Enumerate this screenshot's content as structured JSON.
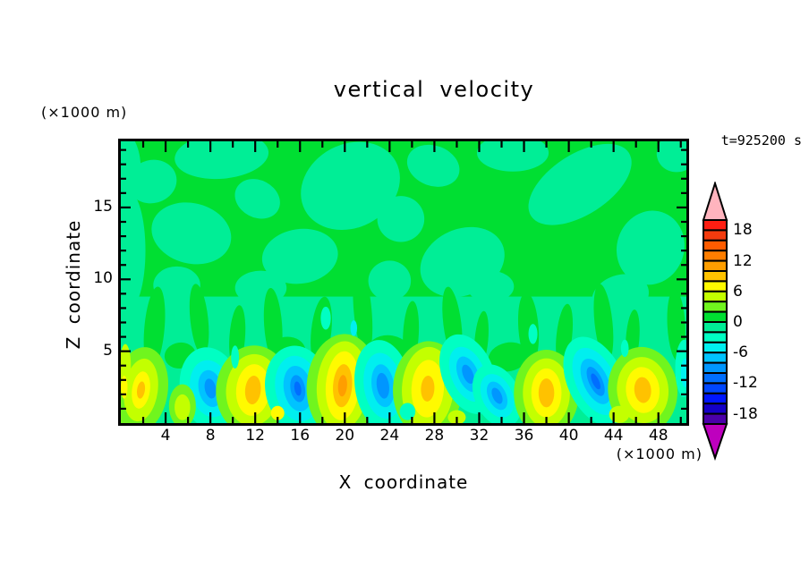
{
  "title": "vertical velocity",
  "time_label": "t=925200 s",
  "x_axis": {
    "title": "X coordinate",
    "unit": "(×1000 m)",
    "labeled_ticks": [
      4,
      8,
      12,
      16,
      20,
      24,
      28,
      32,
      36,
      40,
      44,
      48
    ],
    "minor_step": 2,
    "range": [
      0,
      50.5
    ]
  },
  "y_axis": {
    "title": "Z coordinate",
    "unit": "(×1000 m)",
    "labeled_ticks": [
      5,
      10,
      15
    ],
    "minor_step": 1,
    "range": [
      0,
      19.6
    ]
  },
  "colorbar": {
    "labels": [
      18,
      12,
      6,
      0,
      -6,
      -12,
      -18
    ],
    "segment_values_top_to_bottom": [
      [
        18,
        20
      ],
      [
        16,
        18
      ],
      [
        14,
        16
      ],
      [
        12,
        14
      ],
      [
        10,
        12
      ],
      [
        8,
        10
      ],
      [
        6,
        8
      ],
      [
        4,
        6
      ],
      [
        2,
        4
      ],
      [
        0,
        2
      ],
      [
        -2,
        0
      ],
      [
        -4,
        -2
      ],
      [
        -6,
        -4
      ],
      [
        -8,
        -6
      ],
      [
        -10,
        -8
      ],
      [
        -12,
        -10
      ],
      [
        -14,
        -12
      ],
      [
        -16,
        -14
      ],
      [
        -18,
        -16
      ],
      [
        -20,
        -18
      ]
    ],
    "segment_colors_top_to_bottom": [
      "#FF1E12",
      "#F43B0E",
      "#FF5C00",
      "#FF7E00",
      "#FF9E00",
      "#FFC200",
      "#FFFA00",
      "#C3FF00",
      "#70F51E",
      "#00DF32",
      "#00EE96",
      "#00FFC3",
      "#00EFEF",
      "#00C3FF",
      "#0096FF",
      "#006EFF",
      "#0046FF",
      "#0016FF",
      "#1400C8",
      "#4B00AA"
    ],
    "over_arrow_color": "#FFB4BE",
    "under_arrow_color": "#BE00BE"
  },
  "chart_data": {
    "type": "filled_contour",
    "title": "vertical velocity",
    "xlabel": "X coordinate",
    "ylabel": "Z coordinate",
    "x_unit": "(×1000 m)",
    "y_unit": "(×1000 m)",
    "time_stamp": "t=925200 s",
    "x_range": [
      0,
      50.5
    ],
    "z_range": [
      0,
      19.6
    ],
    "contour_interval": 2,
    "level_min": -20,
    "level_max": 20,
    "field_description": "Vertical velocity cross-section: weak values (-2..2, two greens) aloft; alternating updraft cores (+6..+12, yellow/gold/orange) and downdraft cores (-6..-14, cyan/blue) in the lowest 5 km",
    "palette": {
      "green": "#00DF32",
      "mint": "#00EE96",
      "lightgreen": "#70F51E",
      "chartreuse": "#C3FF00",
      "yellow": "#FFFA00",
      "gold": "#FFC200",
      "orange": "#FF9E00",
      "aqua": "#00FFC3",
      "turquoise": "#00EFEF",
      "lightblue": "#00C3FF",
      "skyblue": "#0096FF",
      "blue": "#006EFF",
      "deepblue": "#0046FF"
    },
    "background": {
      "base_color_key": "green",
      "band_color_key": "mint",
      "band_top_z": 8.8
    },
    "bg_patches": [
      [
        20.5,
        16.5,
        4.6,
        2.9,
        -28
      ],
      [
        9.0,
        18.6,
        4.2,
        1.6,
        -5
      ],
      [
        6.3,
        13.2,
        3.6,
        2.1,
        14
      ],
      [
        16.0,
        11.6,
        3.4,
        1.9,
        -8
      ],
      [
        30.5,
        11.2,
        3.9,
        2.3,
        -24
      ],
      [
        41.0,
        16.6,
        5.2,
        2.1,
        -33
      ],
      [
        47.3,
        12.2,
        3.0,
        2.6,
        18
      ],
      [
        25.0,
        14.2,
        2.1,
        1.6,
        0
      ],
      [
        0.6,
        12.0,
        1.6,
        4.2,
        0
      ],
      [
        35.0,
        18.8,
        3.2,
        1.3,
        0
      ],
      [
        44.6,
        8.8,
        2.6,
        1.5,
        -18
      ],
      [
        12.2,
        15.6,
        2.1,
        1.3,
        28
      ],
      [
        27.9,
        17.9,
        2.4,
        1.4,
        20
      ],
      [
        2.8,
        16.8,
        2.2,
        1.5,
        -15
      ],
      [
        49.8,
        18.9,
        2.0,
        1.4,
        -30
      ],
      [
        0.6,
        17.5,
        1.2,
        2.5,
        0
      ],
      [
        5.0,
        9.6,
        2.1,
        1.3,
        0
      ],
      [
        12.5,
        9.4,
        2.3,
        1.2,
        0
      ],
      [
        24.0,
        9.9,
        1.9,
        1.4,
        0
      ],
      [
        33.0,
        9.5,
        2.1,
        1.1,
        0
      ]
    ],
    "green_streaks": [
      [
        3.0,
        6.6,
        0.9,
        2.9,
        5
      ],
      [
        7.0,
        7.2,
        0.8,
        2.5,
        -6
      ],
      [
        10.4,
        6.0,
        0.7,
        2.2,
        4
      ],
      [
        13.6,
        6.8,
        0.8,
        2.6,
        -4
      ],
      [
        17.9,
        6.4,
        0.9,
        2.4,
        6
      ],
      [
        21.6,
        7.8,
        0.8,
        3.1,
        -5
      ],
      [
        25.9,
        6.2,
        0.7,
        2.3,
        3
      ],
      [
        29.6,
        6.9,
        0.8,
        2.6,
        -7
      ],
      [
        32.2,
        5.8,
        0.6,
        2.0,
        5
      ],
      [
        36.4,
        6.6,
        0.9,
        2.5,
        -4
      ],
      [
        39.6,
        6.1,
        0.7,
        2.2,
        6
      ],
      [
        43.1,
        7.0,
        0.8,
        2.7,
        -6
      ],
      [
        45.7,
        5.9,
        0.6,
        2.0,
        4
      ],
      [
        49.6,
        6.8,
        0.8,
        2.5,
        -3
      ],
      [
        24.0,
        4.9,
        2.0,
        1.2,
        10
      ],
      [
        34.6,
        4.6,
        1.8,
        1.0,
        -12
      ],
      [
        15.0,
        5.1,
        1.5,
        0.9,
        8
      ],
      [
        5.3,
        4.7,
        1.4,
        0.9,
        -8
      ],
      [
        41.5,
        4.9,
        1.6,
        1.0,
        12
      ]
    ],
    "plumes": [
      {
        "kind": "updraft",
        "x": 1.8,
        "z": 2.3,
        "rot": 8,
        "layers": [
          [
            "lightgreen",
            2.4,
            3.0
          ],
          [
            "chartreuse",
            1.5,
            2.2
          ],
          [
            "yellow",
            0.8,
            1.3
          ],
          [
            "gold",
            0.35,
            0.6
          ]
        ]
      },
      {
        "kind": "downdraft",
        "x": 8.0,
        "z": 2.4,
        "rot": -12,
        "layers": [
          [
            "aqua",
            2.7,
            2.9
          ],
          [
            "turquoise",
            1.8,
            2.0
          ],
          [
            "lightblue",
            1.05,
            1.3
          ],
          [
            "skyblue",
            0.5,
            0.7
          ]
        ]
      },
      {
        "kind": "updraft",
        "x": 11.8,
        "z": 2.3,
        "rot": 5,
        "layers": [
          [
            "lightgreen",
            3.3,
            3.1
          ],
          [
            "chartreuse",
            2.4,
            2.5
          ],
          [
            "yellow",
            1.5,
            1.8
          ],
          [
            "gold",
            0.7,
            1.0
          ]
        ]
      },
      {
        "kind": "downdraft",
        "x": 15.8,
        "z": 2.4,
        "rot": -10,
        "layers": [
          [
            "aqua",
            2.9,
            3.0
          ],
          [
            "turquoise",
            2.0,
            2.3
          ],
          [
            "lightblue",
            1.25,
            1.6
          ],
          [
            "skyblue",
            0.65,
            0.95
          ],
          [
            "blue",
            0.3,
            0.5
          ]
        ]
      },
      {
        "kind": "updraft",
        "x": 19.8,
        "z": 2.6,
        "rot": 4,
        "layers": [
          [
            "lightgreen",
            3.2,
            3.6
          ],
          [
            "chartreuse",
            2.3,
            3.1
          ],
          [
            "yellow",
            1.5,
            2.4
          ],
          [
            "gold",
            0.85,
            1.5
          ],
          [
            "orange",
            0.4,
            0.75
          ]
        ]
      },
      {
        "kind": "downdraft",
        "x": 23.4,
        "z": 2.6,
        "rot": -8,
        "layers": [
          [
            "aqua",
            2.5,
            3.2
          ],
          [
            "turquoise",
            1.7,
            2.3
          ],
          [
            "lightblue",
            1.0,
            1.5
          ],
          [
            "skyblue",
            0.55,
            0.9
          ]
        ]
      },
      {
        "kind": "updraft",
        "x": 27.4,
        "z": 2.4,
        "rot": 3,
        "layers": [
          [
            "lightgreen",
            3.1,
            3.3
          ],
          [
            "chartreuse",
            2.3,
            2.9
          ],
          [
            "yellow",
            1.45,
            2.0
          ],
          [
            "gold",
            0.6,
            0.9
          ]
        ]
      },
      {
        "kind": "downdraft",
        "x": 31.0,
        "z": 3.4,
        "rot": -22,
        "layers": [
          [
            "aqua",
            2.3,
            2.9
          ],
          [
            "turquoise",
            1.5,
            2.0
          ],
          [
            "lightblue",
            0.9,
            1.3
          ],
          [
            "skyblue",
            0.45,
            0.7
          ]
        ]
      },
      {
        "kind": "downdraft",
        "x": 33.6,
        "z": 1.9,
        "rot": -25,
        "layers": [
          [
            "aqua",
            2.0,
            2.3
          ],
          [
            "turquoise",
            1.35,
            1.6
          ],
          [
            "lightblue",
            0.8,
            1.05
          ],
          [
            "skyblue",
            0.4,
            0.6
          ]
        ]
      },
      {
        "kind": "updraft",
        "x": 38.0,
        "z": 2.1,
        "rot": 0,
        "layers": [
          [
            "lightgreen",
            2.9,
            3.0
          ],
          [
            "chartreuse",
            2.1,
            2.4
          ],
          [
            "yellow",
            1.35,
            1.7
          ],
          [
            "gold",
            0.7,
            1.0
          ]
        ]
      },
      {
        "kind": "downdraft",
        "x": 42.4,
        "z": 2.9,
        "rot": -25,
        "layers": [
          [
            "aqua",
            2.5,
            3.3
          ],
          [
            "turquoise",
            1.75,
            2.5
          ],
          [
            "lightblue",
            1.1,
            1.7
          ],
          [
            "skyblue",
            0.6,
            1.1
          ],
          [
            "blue",
            0.3,
            0.6
          ]
        ]
      },
      {
        "kind": "updraft",
        "x": 46.6,
        "z": 2.3,
        "rot": -5,
        "layers": [
          [
            "lightgreen",
            3.1,
            3.0
          ],
          [
            "chartreuse",
            2.3,
            2.3
          ],
          [
            "yellow",
            1.5,
            1.6
          ],
          [
            "gold",
            0.75,
            0.9
          ]
        ]
      }
    ],
    "specks": [
      [
        "chartreuse",
        0.4,
        4.0,
        0.5,
        1.5,
        0
      ],
      [
        "yellow",
        0.3,
        2.5,
        0.3,
        0.8,
        0
      ],
      [
        "lightgreen",
        5.5,
        1.2,
        1.2,
        1.5,
        0
      ],
      [
        "chartreuse",
        5.5,
        1.1,
        0.7,
        0.9,
        0
      ],
      [
        "yellow",
        14.0,
        0.7,
        0.6,
        0.5,
        0
      ],
      [
        "aqua",
        25.6,
        0.8,
        0.7,
        0.6,
        0
      ],
      [
        "chartreuse",
        30.0,
        0.4,
        0.8,
        0.5,
        0
      ],
      [
        "chartreuse",
        44.5,
        0.6,
        0.9,
        0.6,
        0
      ],
      [
        "aqua",
        50.3,
        3.8,
        0.8,
        2.0,
        0
      ],
      [
        "turquoise",
        50.4,
        3.5,
        0.4,
        1.0,
        0
      ],
      [
        "aqua",
        18.3,
        7.3,
        0.45,
        0.8,
        0
      ],
      [
        "turquoise",
        20.8,
        6.6,
        0.3,
        0.55,
        0
      ],
      [
        "aqua",
        36.8,
        6.2,
        0.4,
        0.7,
        0
      ],
      [
        "aqua",
        10.2,
        4.6,
        0.35,
        0.8,
        0
      ],
      [
        "aqua",
        45.0,
        5.2,
        0.35,
        0.6,
        0
      ]
    ]
  }
}
